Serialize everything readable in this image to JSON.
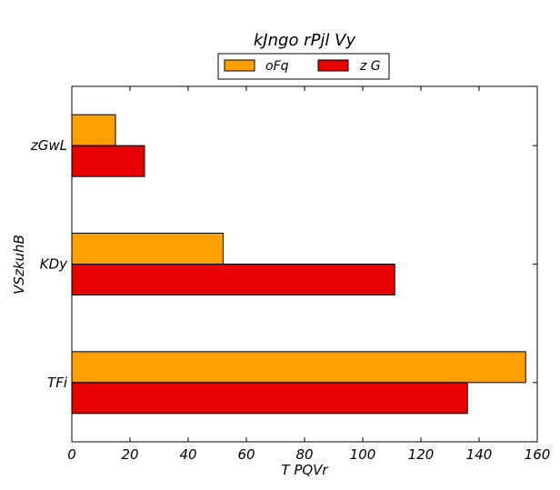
{
  "chart_data": {
    "type": "bar",
    "orientation": "horizontal",
    "title": "kJngo rPjl Vy",
    "xlabel": "T PQVr",
    "ylabel": "VSzkuhB",
    "categories": [
      "zGwL",
      "KDy",
      "TFi"
    ],
    "series": [
      {
        "name": "oFq",
        "color": "#ffa000",
        "values": [
          15,
          52,
          156
        ]
      },
      {
        "name": "z G",
        "color": "#e60000",
        "values": [
          25,
          111,
          136
        ]
      }
    ],
    "xlim": [
      0,
      160
    ],
    "xticks": [
      0,
      20,
      40,
      60,
      80,
      100,
      120,
      140,
      160
    ],
    "grid": false,
    "legend_position": "top-center"
  }
}
